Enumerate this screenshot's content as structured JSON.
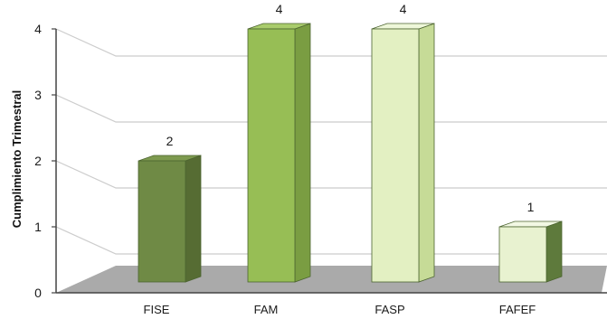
{
  "chart_data": {
    "type": "bar",
    "title": "",
    "xlabel": "",
    "ylabel": "Cumplimiento Trimestral",
    "categories": [
      "FISE",
      "FAM",
      "FASP",
      "FAFEF"
    ],
    "values": [
      2,
      4,
      4,
      1
    ],
    "data_labels": [
      "2",
      "4",
      "4",
      "1"
    ],
    "ylim": [
      0,
      4
    ],
    "yticks": [
      "0",
      "1",
      "2",
      "3",
      "4"
    ],
    "grid": true,
    "legend": "none",
    "bar_colors": [
      {
        "front": "#6f8a45",
        "side": "#566c33",
        "top": "#7d9a4f"
      },
      {
        "front": "#97be55",
        "side": "#7a9d42",
        "top": "#a9cc6c"
      },
      {
        "front": "#e3f0c2",
        "side": "#c6db97",
        "top": "#eef7d9"
      },
      {
        "front": "#e8f2d0",
        "side": "#5e7a3c",
        "top": "#f2f8e4"
      }
    ],
    "floor_color": "#aaaaaa",
    "gridline_color": "#cccccc"
  }
}
